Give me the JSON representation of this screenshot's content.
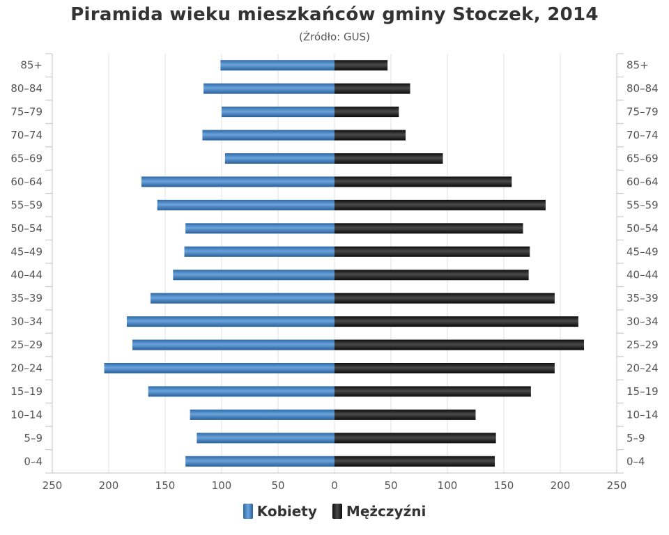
{
  "chart_data": {
    "type": "bar",
    "title": "Piramida wieku mieszkańców gminy Stoczek, 2014",
    "subtitle": "(Źródło: GUS)",
    "categories": [
      "85+",
      "80–84",
      "75–79",
      "70–74",
      "65–69",
      "60–64",
      "55–59",
      "50–54",
      "45–49",
      "40–44",
      "35–39",
      "30–34",
      "25–29",
      "20–24",
      "15–19",
      "10–14",
      "5–9",
      "0–4"
    ],
    "series": [
      {
        "name": "Kobiety",
        "color": "#3d7ab8",
        "values": [
          101,
          116,
          100,
          117,
          97,
          171,
          157,
          132,
          133,
          143,
          163,
          184,
          179,
          204,
          165,
          128,
          122,
          132
        ]
      },
      {
        "name": "Mężczyźni",
        "color": "#1a1a1a",
        "values": [
          47,
          67,
          57,
          63,
          96,
          157,
          187,
          167,
          173,
          172,
          195,
          216,
          221,
          195,
          174,
          125,
          143,
          142
        ]
      }
    ],
    "xlim": [
      -250,
      250
    ],
    "x_ticks": [
      "250",
      "200",
      "150",
      "100",
      "50",
      "0",
      "50",
      "100",
      "150",
      "200",
      "250"
    ],
    "grid": true,
    "legend_position": "bottom"
  }
}
